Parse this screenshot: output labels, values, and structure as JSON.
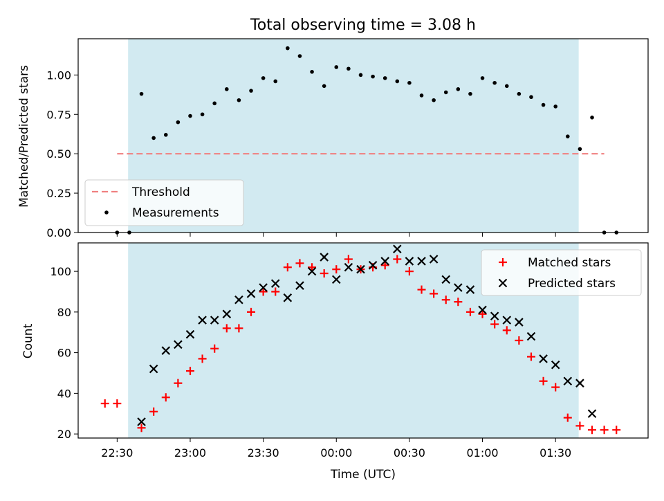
{
  "chart_data": [
    {
      "type": "scatter",
      "title": "Total observing time = 3.08 h",
      "ylabel": "Matched/Predicted stars",
      "ylim": [
        0,
        1.23
      ],
      "yticks": [
        "0.00",
        "0.25",
        "0.50",
        "0.75",
        "1.00"
      ],
      "ytick_values": [
        0,
        0.25,
        0.5,
        0.75,
        1.0
      ],
      "shaded_span_minutes": [
        -25.5,
        159.5
      ],
      "shade_color": "#add8e6",
      "legend_position": "lower-left",
      "threshold": {
        "name": "Threshold",
        "value": 0.5,
        "x_range_minutes": [
          -30,
          170
        ],
        "color": "#f08080",
        "style": "dashed"
      },
      "series": [
        {
          "name": "Measurements",
          "color": "#000000",
          "marker": "dot",
          "x_minutes": [
            -30,
            -25,
            -20,
            -15,
            -10,
            -5,
            0,
            5,
            10,
            15,
            20,
            25,
            30,
            35,
            40,
            45,
            50,
            55,
            60,
            65,
            70,
            75,
            80,
            85,
            90,
            95,
            100,
            105,
            110,
            115,
            120,
            125,
            130,
            135,
            140,
            145,
            150,
            155,
            160,
            165,
            170,
            175
          ],
          "values": [
            0.0,
            0.0,
            0.88,
            0.6,
            0.62,
            0.7,
            0.74,
            0.75,
            0.82,
            0.91,
            0.84,
            0.9,
            0.98,
            0.96,
            1.17,
            1.12,
            1.02,
            0.93,
            1.05,
            1.04,
            1.0,
            0.99,
            0.98,
            0.96,
            0.95,
            0.87,
            0.84,
            0.89,
            0.91,
            0.88,
            0.98,
            0.95,
            0.93,
            0.88,
            0.86,
            0.81,
            0.8,
            0.61,
            0.53,
            0.73,
            0.0,
            0.0
          ]
        }
      ]
    },
    {
      "type": "scatter",
      "xlabel": "Time (UTC)",
      "ylabel": "Count",
      "ylim": [
        18,
        114
      ],
      "yticks": [
        "20",
        "40",
        "60",
        "80",
        "100"
      ],
      "ytick_values": [
        20,
        40,
        60,
        80,
        100
      ],
      "xlim_minutes": [
        -46,
        188
      ],
      "xticks": [
        "22:30",
        "23:00",
        "23:30",
        "00:00",
        "00:30",
        "01:00",
        "01:30"
      ],
      "xtick_minutes": [
        -30,
        0,
        30,
        60,
        90,
        120,
        150
      ],
      "shaded_span_minutes": [
        -25.5,
        159.5
      ],
      "legend_position": "upper-right",
      "series": [
        {
          "name": "Matched stars",
          "color": "#ff0000",
          "marker": "plus",
          "x_minutes": [
            -35,
            -30,
            -20,
            -15,
            -10,
            -5,
            0,
            5,
            10,
            15,
            20,
            25,
            30,
            35,
            40,
            45,
            50,
            55,
            60,
            65,
            70,
            75,
            80,
            85,
            90,
            95,
            100,
            105,
            110,
            115,
            120,
            125,
            130,
            135,
            140,
            145,
            150,
            155,
            160,
            165,
            170,
            175,
            180,
            185
          ],
          "values": [
            35,
            35,
            23,
            31,
            38,
            45,
            51,
            57,
            62,
            72,
            72,
            80,
            90,
            90,
            102,
            104,
            102,
            99,
            101,
            106,
            101,
            102,
            103,
            106,
            100,
            91,
            89,
            86,
            85,
            80,
            79,
            74,
            71,
            66,
            58,
            46,
            43,
            28,
            24,
            22,
            22,
            22,
            null,
            null
          ]
        },
        {
          "name": "Predicted stars",
          "color": "#000000",
          "marker": "x",
          "x_minutes": [
            -20,
            -15,
            -10,
            -5,
            0,
            5,
            10,
            15,
            20,
            25,
            30,
            35,
            40,
            45,
            50,
            55,
            60,
            65,
            70,
            75,
            80,
            85,
            90,
            95,
            100,
            105,
            110,
            115,
            120,
            125,
            130,
            135,
            140,
            145,
            150,
            155,
            160,
            165
          ],
          "values": [
            26,
            52,
            61,
            64,
            69,
            76,
            76,
            79,
            86,
            89,
            92,
            94,
            87,
            93,
            100,
            107,
            96,
            102,
            101,
            103,
            105,
            111,
            105,
            105,
            106,
            96,
            92,
            91,
            81,
            78,
            76,
            75,
            68,
            57,
            54,
            46,
            45,
            30
          ]
        }
      ]
    }
  ]
}
